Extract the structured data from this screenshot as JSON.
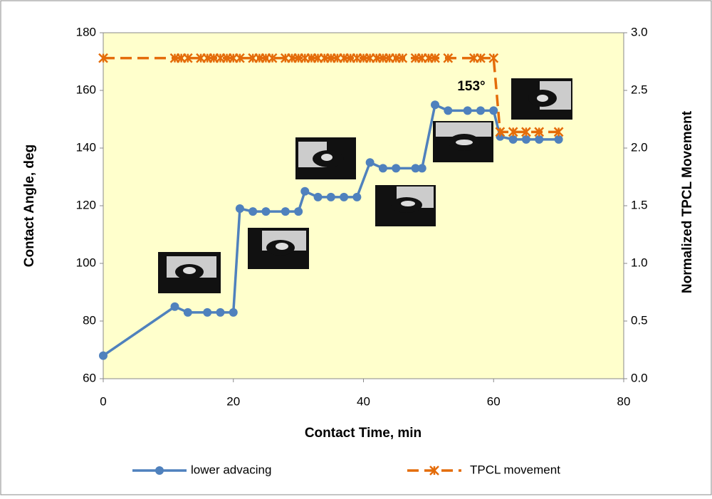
{
  "chart_data": {
    "type": "line",
    "x_label": "Contact Time, min",
    "y_label": "Contact Angle, deg",
    "y2_label": "Normalized TPCL Movement",
    "annotation": "153°",
    "xlim": [
      0,
      80
    ],
    "xticks": [
      0,
      20,
      40,
      60,
      80
    ],
    "ylim": [
      60,
      180
    ],
    "yticks": [
      60,
      80,
      100,
      120,
      140,
      160,
      180
    ],
    "y2lim": [
      0,
      3
    ],
    "y2ticks": [
      {
        "value": 0,
        "label": "0.0"
      },
      0.5,
      {
        "value": 1,
        "label": "1.0"
      },
      1.5,
      {
        "value": 2,
        "label": "2.0"
      },
      2.5,
      {
        "value": 3,
        "label": "3.0"
      }
    ],
    "series": [
      {
        "name": "lower advacing",
        "color": "#4f81bd",
        "marker": "circle",
        "x": [
          0,
          11,
          13,
          16,
          18,
          20,
          21,
          23,
          25,
          28,
          30,
          31,
          33,
          35,
          37,
          39,
          41,
          43,
          45,
          48,
          49,
          51,
          53,
          56,
          58,
          60,
          61,
          63,
          65,
          67,
          70
        ],
        "values": [
          68,
          85,
          83,
          83,
          83,
          83,
          119,
          118,
          118,
          118,
          118,
          125,
          123,
          123,
          123,
          123,
          135,
          133,
          133,
          133,
          133,
          155,
          153,
          153,
          153,
          153,
          144,
          143,
          143,
          143,
          143
        ]
      },
      {
        "name": "TPCL movement",
        "color": "#e46c0a",
        "marker": "x",
        "axis": "y2",
        "dashed": true,
        "x": [
          0,
          11,
          12,
          13,
          15,
          16,
          17,
          18,
          19,
          20,
          21,
          23,
          24,
          25,
          26,
          28,
          29,
          30,
          31,
          32,
          33,
          34,
          35,
          36,
          37,
          38,
          39,
          40,
          41,
          42,
          43,
          44,
          45,
          46,
          48,
          49,
          50,
          51,
          53,
          57,
          58,
          60,
          61,
          63,
          65,
          67,
          70
        ],
        "values": [
          2.78,
          2.78,
          2.78,
          2.78,
          2.78,
          2.78,
          2.78,
          2.78,
          2.78,
          2.78,
          2.78,
          2.78,
          2.78,
          2.78,
          2.78,
          2.78,
          2.78,
          2.78,
          2.78,
          2.78,
          2.78,
          2.78,
          2.78,
          2.78,
          2.78,
          2.78,
          2.78,
          2.78,
          2.78,
          2.78,
          2.78,
          2.78,
          2.78,
          2.78,
          2.78,
          2.78,
          2.78,
          2.78,
          2.78,
          2.78,
          2.78,
          2.78,
          2.14,
          2.14,
          2.14,
          2.14,
          2.14
        ]
      }
    ]
  }
}
